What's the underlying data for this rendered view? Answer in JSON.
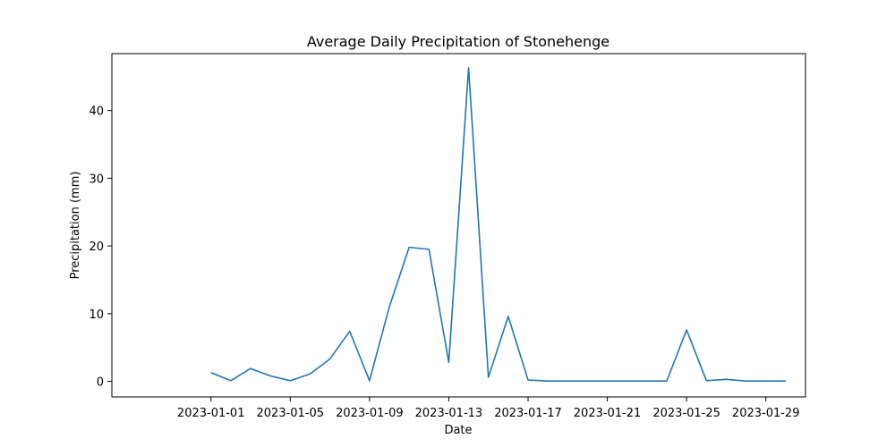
{
  "chart_data": {
    "type": "line",
    "title": "Average Daily Precipitation of Stonehenge",
    "xlabel": "Date",
    "ylabel": "Precipitation (mm)",
    "x_tick_labels": [
      "2023-01-01",
      "2023-01-05",
      "2023-01-09",
      "2023-01-13",
      "2023-01-17",
      "2023-01-21",
      "2023-01-25",
      "2023-01-29"
    ],
    "y_ticks": [
      0,
      10,
      20,
      30,
      40
    ],
    "xlim": [
      "2022-12-27",
      "2023-01-31"
    ],
    "ylim": [
      -2.3,
      48.4
    ],
    "grid": false,
    "line_color": "#1f77b4",
    "series": [
      {
        "x": [
          "2023-01-01",
          "2023-01-02",
          "2023-01-03",
          "2023-01-04",
          "2023-01-05",
          "2023-01-06",
          "2023-01-07",
          "2023-01-08",
          "2023-01-09",
          "2023-01-10",
          "2023-01-11",
          "2023-01-12",
          "2023-01-13",
          "2023-01-14",
          "2023-01-15",
          "2023-01-16",
          "2023-01-17",
          "2023-01-18",
          "2023-01-19",
          "2023-01-20",
          "2023-01-21",
          "2023-01-22",
          "2023-01-23",
          "2023-01-24",
          "2023-01-25",
          "2023-01-26",
          "2023-01-27",
          "2023-01-28",
          "2023-01-29",
          "2023-01-30"
        ],
        "values": [
          1.3,
          0.1,
          1.9,
          0.8,
          0.1,
          1.1,
          3.3,
          7.4,
          0.1,
          11.0,
          19.8,
          19.5,
          2.8,
          46.3,
          0.6,
          9.6,
          0.2,
          0.05,
          0.05,
          0.05,
          0.05,
          0.05,
          0.05,
          0.05,
          7.6,
          0.1,
          0.3,
          0.05,
          0.05,
          0.05
        ]
      }
    ]
  }
}
